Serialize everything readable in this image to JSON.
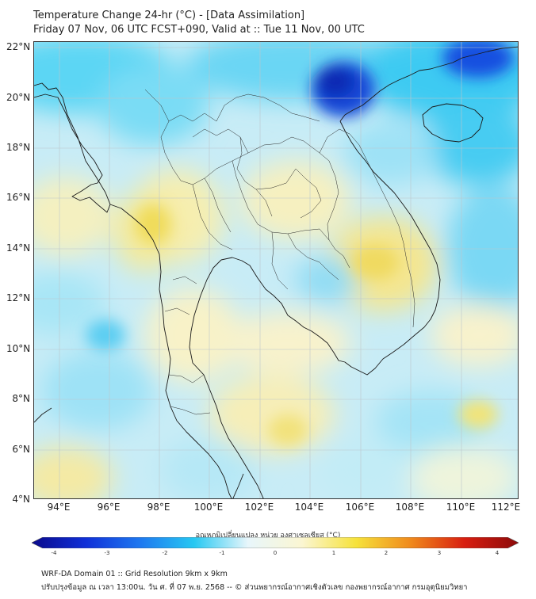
{
  "title_line1": "Temperature Change 24-hr (°C) - [Data Assimilation]",
  "title_line2": "Friday 07 Nov, 06 UTC FCST+090, Valid at :: Tue 11 Nov, 00 UTC",
  "latitude_labels": [
    "22°N",
    "20°N",
    "18°N",
    "16°N",
    "14°N",
    "12°N",
    "10°N",
    "8°N",
    "6°N",
    "4°N"
  ],
  "longitude_labels": [
    "94°E",
    "96°E",
    "98°E",
    "100°E",
    "102°E",
    "104°E",
    "106°E",
    "108°E",
    "110°E",
    "112°E"
  ],
  "colorbar": {
    "title": "อุณหภูมิเปลี่ยนแปลง หน่วย องศาเซลเซียส (°C)",
    "ticks": [
      "-4",
      "-3",
      "-2",
      "-1",
      "0",
      "1",
      "2",
      "3",
      "4"
    ],
    "colors": [
      "#0a0a8c",
      "#1030d8",
      "#1e78f0",
      "#26c8f2",
      "#e8f6fb",
      "#fbf6d2",
      "#f6e23a",
      "#f08a1c",
      "#d81e10",
      "#8c0a0a"
    ]
  },
  "footer_line1": "WRF-DA Domain 01 :: Grid Resolution 9km x 9km",
  "footer_line2": "ปรับปรุงข้อมูล ณ เวลา 13:00น. วัน ศ. ที่ 07 พ.ย. 2568 -- © ส่วนพยากรณ์อากาศเชิงตัวเลข กองพยากรณ์อากาศ กรมอุตุนิยมวิทยา"
}
